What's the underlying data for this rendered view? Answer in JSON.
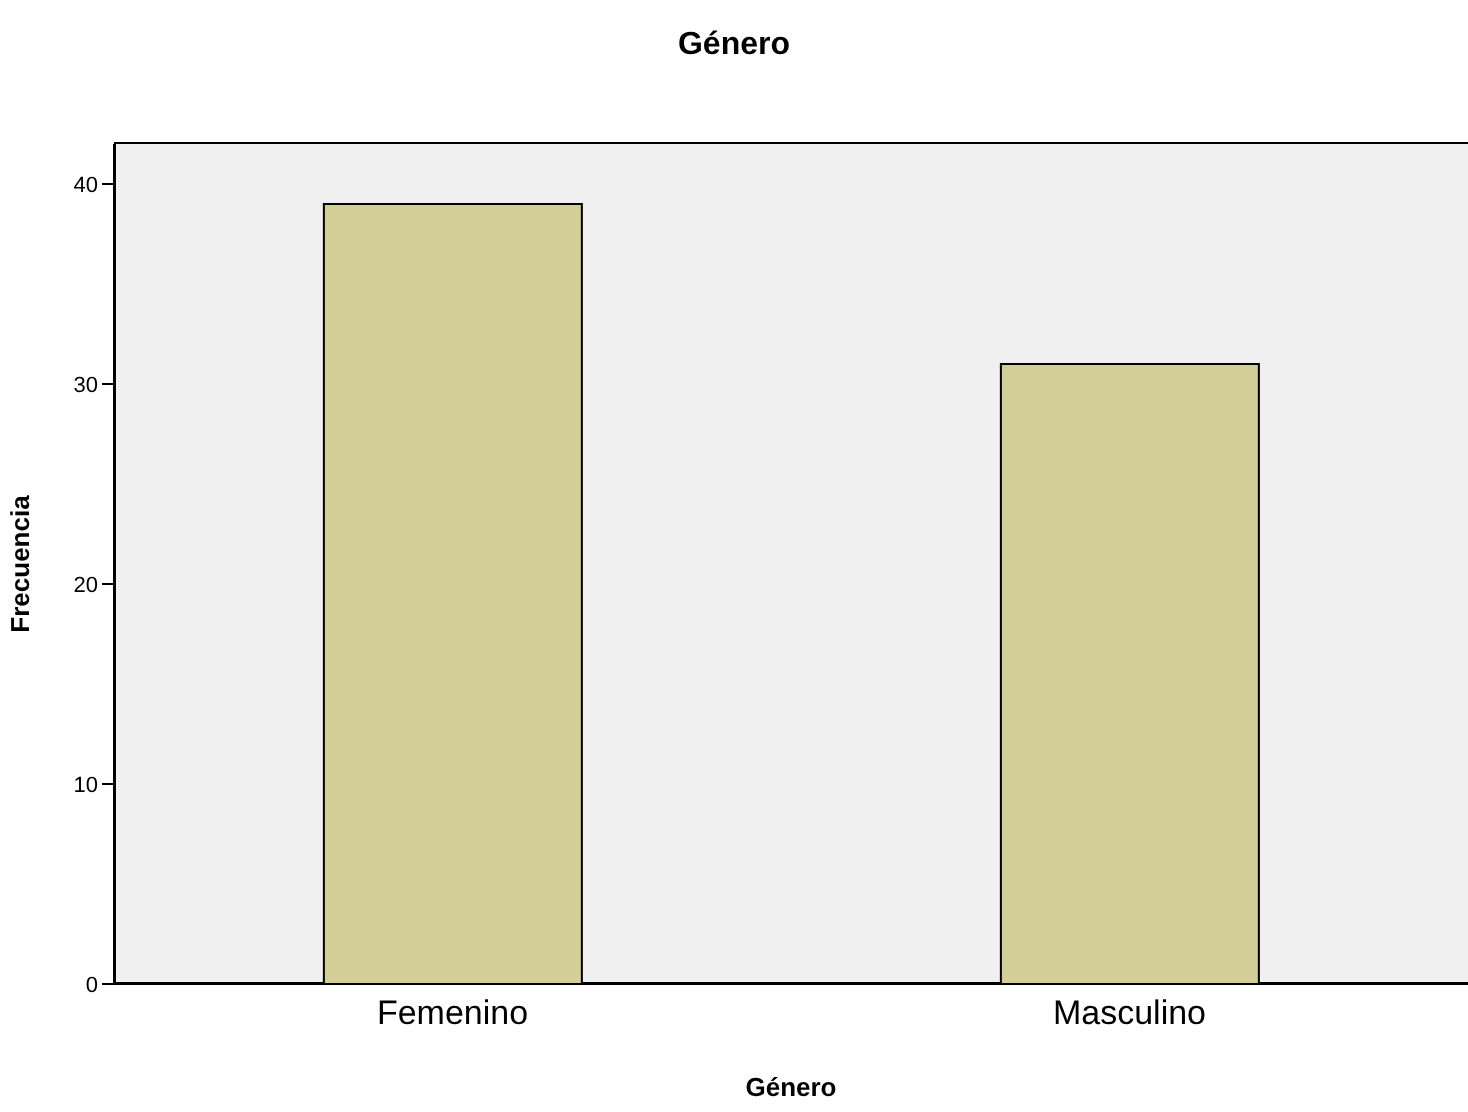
{
  "chart_data": {
    "type": "bar",
    "title": "Género",
    "xlabel": "Género",
    "ylabel": "Frecuencia",
    "categories": [
      "Femenino",
      "Masculino"
    ],
    "values": [
      39,
      31
    ],
    "color": "#d3ce97",
    "ylim": [
      0,
      42
    ],
    "yticks": [
      0,
      10,
      20,
      30,
      40
    ]
  }
}
